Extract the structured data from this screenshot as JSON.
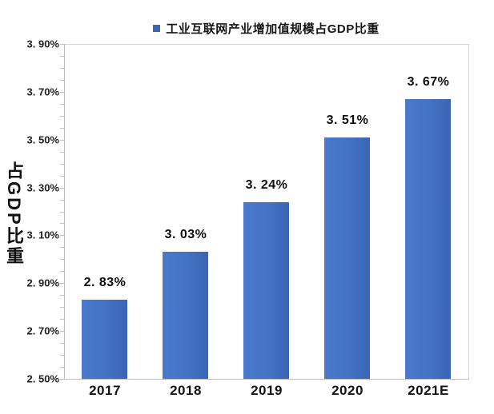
{
  "legend": {
    "label": "工业互联网产业增加值规模占GDP比重",
    "marker_color": "#3a67b5",
    "marker_icon": "square-icon"
  },
  "chart_data": {
    "type": "bar",
    "title": "",
    "categories": [
      "2017",
      "2018",
      "2019",
      "2020",
      "2021E"
    ],
    "values": [
      2.83,
      3.03,
      3.24,
      3.51,
      3.67
    ],
    "value_labels": [
      "2. 83%",
      "3. 03%",
      "3. 24%",
      "3. 51%",
      "3. 67%"
    ],
    "series_name": "工业互联网产业增加值规模占GDP比重",
    "xlabel": "",
    "ylabel": "占GDP比重",
    "ylim": [
      2.5,
      3.9
    ],
    "y_tick_step": 0.2,
    "y_minor_tick_step": 0.05,
    "y_tick_labels": [
      "3. 90%",
      "3. 70%",
      "3. 50%",
      "3. 30%",
      "3. 10%",
      "2. 90%",
      "2. 70%",
      "2. 50%"
    ],
    "grid": "off",
    "legend_position": "top-center",
    "bar_color": "#4472c4"
  },
  "colors": {
    "bar": "#4472c4",
    "axis_line": "#bdbdbd",
    "frame_line": "#d6d6d6",
    "tick_mark": "#c4c4c4",
    "text": "#141414",
    "background": "#ffffff"
  }
}
